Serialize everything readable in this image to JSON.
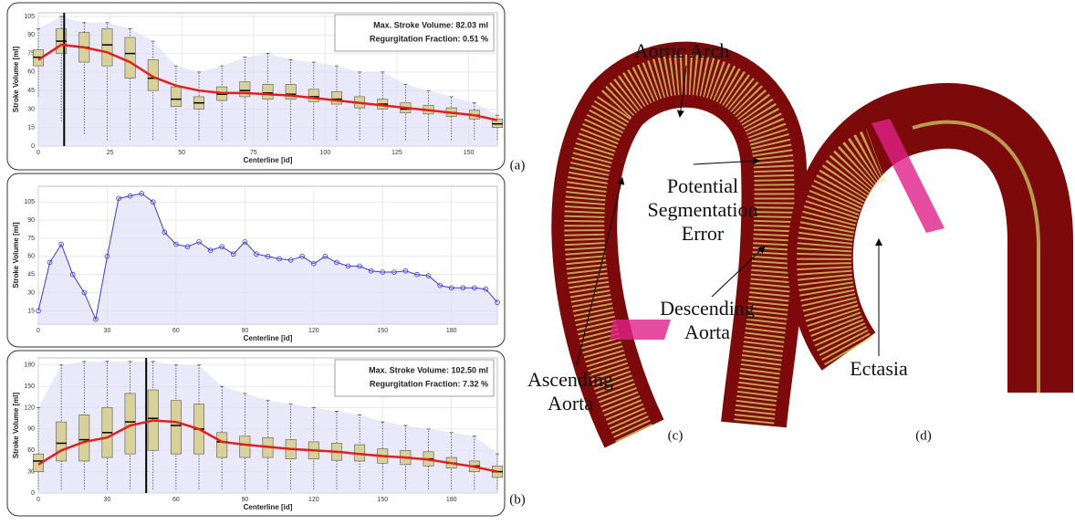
{
  "chart_data": [
    {
      "type": "box",
      "x_label": "Centerline [id]",
      "y_label": "Stroke Volume [ml]",
      "annotations": [
        "Max. Stroke Volume: 82.03 ml",
        "Regurgitation Fraction: 0.51 %"
      ],
      "marker_x": 9,
      "xlim": [
        0,
        160
      ],
      "ylim": [
        0,
        108
      ],
      "xticks": [
        0,
        25,
        50,
        75,
        100,
        125,
        150
      ],
      "yticks": [
        0,
        15,
        30,
        45,
        60,
        75,
        90,
        105
      ],
      "grid": true,
      "x": [
        0,
        8,
        16,
        24,
        32,
        40,
        48,
        56,
        64,
        72,
        80,
        88,
        96,
        104,
        112,
        120,
        128,
        136,
        144,
        152,
        160
      ],
      "boxes": {
        "color": "#d8d29a",
        "low": [
          40,
          20,
          10,
          5,
          5,
          5,
          5,
          5,
          5,
          5,
          5,
          5,
          5,
          5,
          5,
          5,
          5,
          5,
          5,
          5,
          5
        ],
        "q1": [
          65,
          75,
          68,
          65,
          55,
          45,
          32,
          30,
          37,
          40,
          38,
          38,
          36,
          34,
          31,
          30,
          27,
          26,
          24,
          22,
          15
        ],
        "median": [
          72,
          85,
          80,
          82,
          75,
          55,
          38,
          35,
          42,
          45,
          43,
          42,
          40,
          38,
          35,
          34,
          30,
          29,
          27,
          25,
          18
        ],
        "q3": [
          78,
          95,
          92,
          95,
          88,
          70,
          48,
          40,
          48,
          52,
          50,
          50,
          46,
          44,
          40,
          38,
          35,
          33,
          31,
          29,
          22
        ],
        "high": [
          95,
          105,
          100,
          100,
          95,
          85,
          65,
          60,
          65,
          72,
          75,
          70,
          68,
          65,
          60,
          60,
          50,
          45,
          40,
          35,
          25
        ]
      },
      "fit": {
        "color": "#e0201a",
        "values": [
          70,
          82,
          80,
          76,
          68,
          56,
          49,
          45,
          43,
          43,
          42,
          41,
          39,
          37,
          35,
          33,
          31,
          29,
          27,
          25,
          21
        ]
      }
    },
    {
      "type": "line",
      "x_label": "Centerline [id]",
      "y_label": "Stroke Volume [ml]",
      "xlim": [
        0,
        200
      ],
      "ylim": [
        4,
        118
      ],
      "xticks": [
        0,
        30,
        60,
        90,
        120,
        150,
        180
      ],
      "yticks": [
        15,
        30,
        45,
        60,
        75,
        90,
        105
      ],
      "grid": true,
      "x": [
        0,
        5,
        10,
        15,
        20,
        25,
        30,
        35,
        40,
        45,
        50,
        55,
        60,
        65,
        70,
        75,
        80,
        85,
        90,
        95,
        100,
        105,
        110,
        115,
        120,
        125,
        130,
        135,
        140,
        145,
        150,
        155,
        160,
        165,
        170,
        175,
        180,
        185,
        190,
        195,
        200
      ],
      "series": [
        {
          "color": "#3a3ad0",
          "values": [
            15,
            55,
            70,
            45,
            30,
            8,
            60,
            108,
            110,
            112,
            105,
            80,
            70,
            68,
            72,
            65,
            68,
            62,
            72,
            62,
            60,
            58,
            57,
            60,
            54,
            60,
            55,
            52,
            52,
            48,
            47,
            47,
            48,
            45,
            44,
            36,
            34,
            34,
            34,
            33,
            22
          ]
        }
      ]
    },
    {
      "type": "box",
      "x_label": "Centerline [id]",
      "y_label": "Stroke Volume [ml]",
      "annotations": [
        "Max. Stroke Volume: 102.50 ml",
        "Regurgitation Fraction: 7.32 %"
      ],
      "marker_x": 47,
      "xlim": [
        0,
        200
      ],
      "ylim": [
        0,
        190
      ],
      "xticks": [
        0,
        30,
        60,
        90,
        120,
        150,
        180
      ],
      "yticks": [
        0,
        30,
        60,
        90,
        120,
        150,
        180
      ],
      "grid": true,
      "x": [
        0,
        10,
        20,
        30,
        40,
        50,
        60,
        70,
        80,
        90,
        100,
        110,
        120,
        130,
        140,
        150,
        160,
        170,
        180,
        190,
        200
      ],
      "boxes": {
        "color": "#d8d29a",
        "low": [
          5,
          5,
          5,
          5,
          5,
          5,
          5,
          5,
          5,
          5,
          5,
          5,
          5,
          5,
          5,
          5,
          5,
          5,
          5,
          5,
          5
        ],
        "q1": [
          30,
          45,
          45,
          50,
          55,
          60,
          55,
          55,
          50,
          50,
          50,
          48,
          48,
          46,
          45,
          42,
          40,
          38,
          35,
          30,
          22
        ],
        "median": [
          45,
          70,
          75,
          85,
          100,
          105,
          95,
          90,
          72,
          68,
          65,
          62,
          60,
          58,
          55,
          52,
          50,
          48,
          42,
          38,
          30
        ],
        "q3": [
          55,
          100,
          110,
          120,
          140,
          145,
          130,
          125,
          85,
          80,
          78,
          75,
          72,
          70,
          68,
          62,
          60,
          58,
          50,
          45,
          38
        ],
        "high": [
          120,
          180,
          185,
          185,
          185,
          185,
          180,
          180,
          150,
          140,
          130,
          125,
          120,
          115,
          110,
          100,
          95,
          90,
          85,
          80,
          55
        ]
      },
      "fit": {
        "color": "#e0201a",
        "values": [
          40,
          60,
          72,
          78,
          95,
          102,
          100,
          90,
          72,
          68,
          65,
          62,
          60,
          58,
          55,
          52,
          50,
          47,
          42,
          37,
          30
        ]
      }
    }
  ],
  "figure": {
    "panel_labels": [
      "(a)",
      "(b)",
      "(c)",
      "(d)"
    ],
    "render_labels": {
      "aortic_arch": "Aortic Arch",
      "segmentation_error": [
        "Potential",
        "Segmentation",
        "Error"
      ],
      "descending": [
        "Descending",
        "Aorta"
      ],
      "ascending": [
        "Ascending",
        "Aorta"
      ],
      "ectasia": "Ectasia"
    }
  }
}
